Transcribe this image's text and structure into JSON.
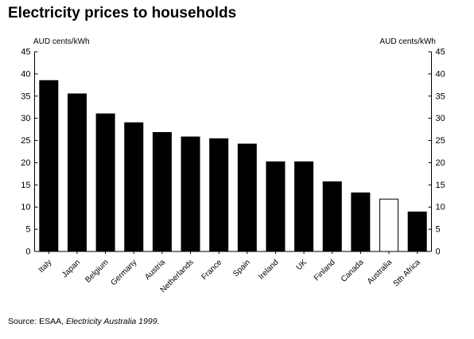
{
  "chart_data": {
    "type": "bar",
    "title": "Electricity prices to households",
    "ylabel_left": "AUD cents/kWh",
    "ylabel_right": "AUD cents/kWh",
    "ylim": [
      0,
      45
    ],
    "yticks": [
      "0",
      "5",
      "10",
      "15",
      "20",
      "25",
      "30",
      "35",
      "40",
      "45"
    ],
    "categories": [
      "Italy",
      "Japan",
      "Belgium",
      "Germany",
      "Austria",
      "Netherlands",
      "France",
      "Spain",
      "Ireland",
      "UK",
      "Finland",
      "Canada",
      "Australia",
      "Sth Africa"
    ],
    "values": [
      38.5,
      35.5,
      31,
      29,
      26.8,
      25.8,
      25.4,
      24.2,
      20.2,
      20.2,
      15.7,
      13.2,
      11.8,
      8.9
    ],
    "highlight_category": "Australia",
    "bar_color": "#000000",
    "highlight_fill": "#ffffff",
    "grid": false
  },
  "source": {
    "prefix": "Source:  ESAA, ",
    "publication": "Electricity Australia 1999",
    "suffix": "."
  }
}
